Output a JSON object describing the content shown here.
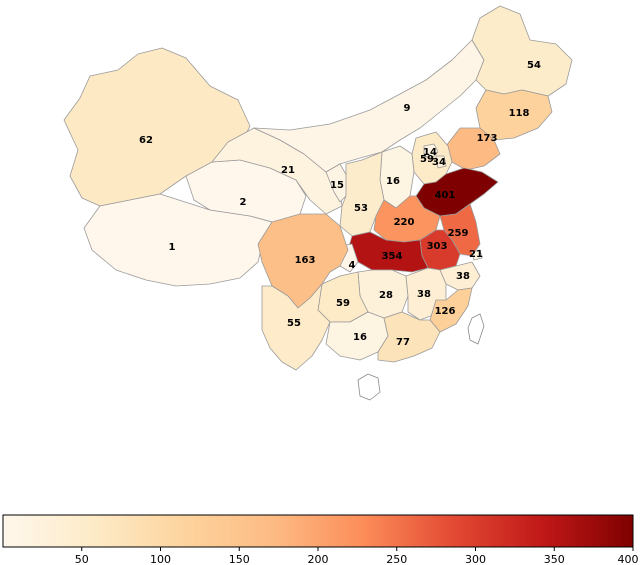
{
  "map": {
    "provinces": [
      {
        "id": "xinjiang",
        "value": 62
      },
      {
        "id": "tibet",
        "value": 1
      },
      {
        "id": "qinghai",
        "value": 2
      },
      {
        "id": "gansu",
        "value": 21
      },
      {
        "id": "inner-mongolia",
        "value": 9
      },
      {
        "id": "heilongjiang",
        "value": 54
      },
      {
        "id": "jilin",
        "value": 118
      },
      {
        "id": "liaoning",
        "value": 173
      },
      {
        "id": "beijing",
        "value": 14
      },
      {
        "id": "hebei",
        "value": 59
      },
      {
        "id": "tianjin",
        "value": 34
      },
      {
        "id": "ningxia",
        "value": 15
      },
      {
        "id": "shanxi",
        "value": 16
      },
      {
        "id": "shaanxi",
        "value": 53
      },
      {
        "id": "shandong",
        "value": 401
      },
      {
        "id": "henan",
        "value": 220
      },
      {
        "id": "jiangsu",
        "value": 259
      },
      {
        "id": "anhui",
        "value": 303
      },
      {
        "id": "shanghai",
        "value": 21
      },
      {
        "id": "hubei",
        "value": 354
      },
      {
        "id": "chongqing",
        "value": 4
      },
      {
        "id": "sichuan",
        "value": 163
      },
      {
        "id": "zhejiang",
        "value": 38
      },
      {
        "id": "hunan",
        "value": 28
      },
      {
        "id": "jiangxi",
        "value": 38
      },
      {
        "id": "guizhou",
        "value": 59
      },
      {
        "id": "fujian",
        "value": 126
      },
      {
        "id": "yunnan",
        "value": 55
      },
      {
        "id": "guangxi",
        "value": 16
      },
      {
        "id": "guangdong",
        "value": 77
      }
    ]
  },
  "colorbar": {
    "min": 0,
    "max": 400,
    "ticks": [
      "50",
      "100",
      "150",
      "200",
      "250",
      "300",
      "350",
      "400"
    ],
    "colors": [
      "#fff7ec",
      "#fdebc8",
      "#fdd49e",
      "#fdbb84",
      "#fc8d59",
      "#e34a33",
      "#c01818",
      "#7f0000"
    ]
  }
}
